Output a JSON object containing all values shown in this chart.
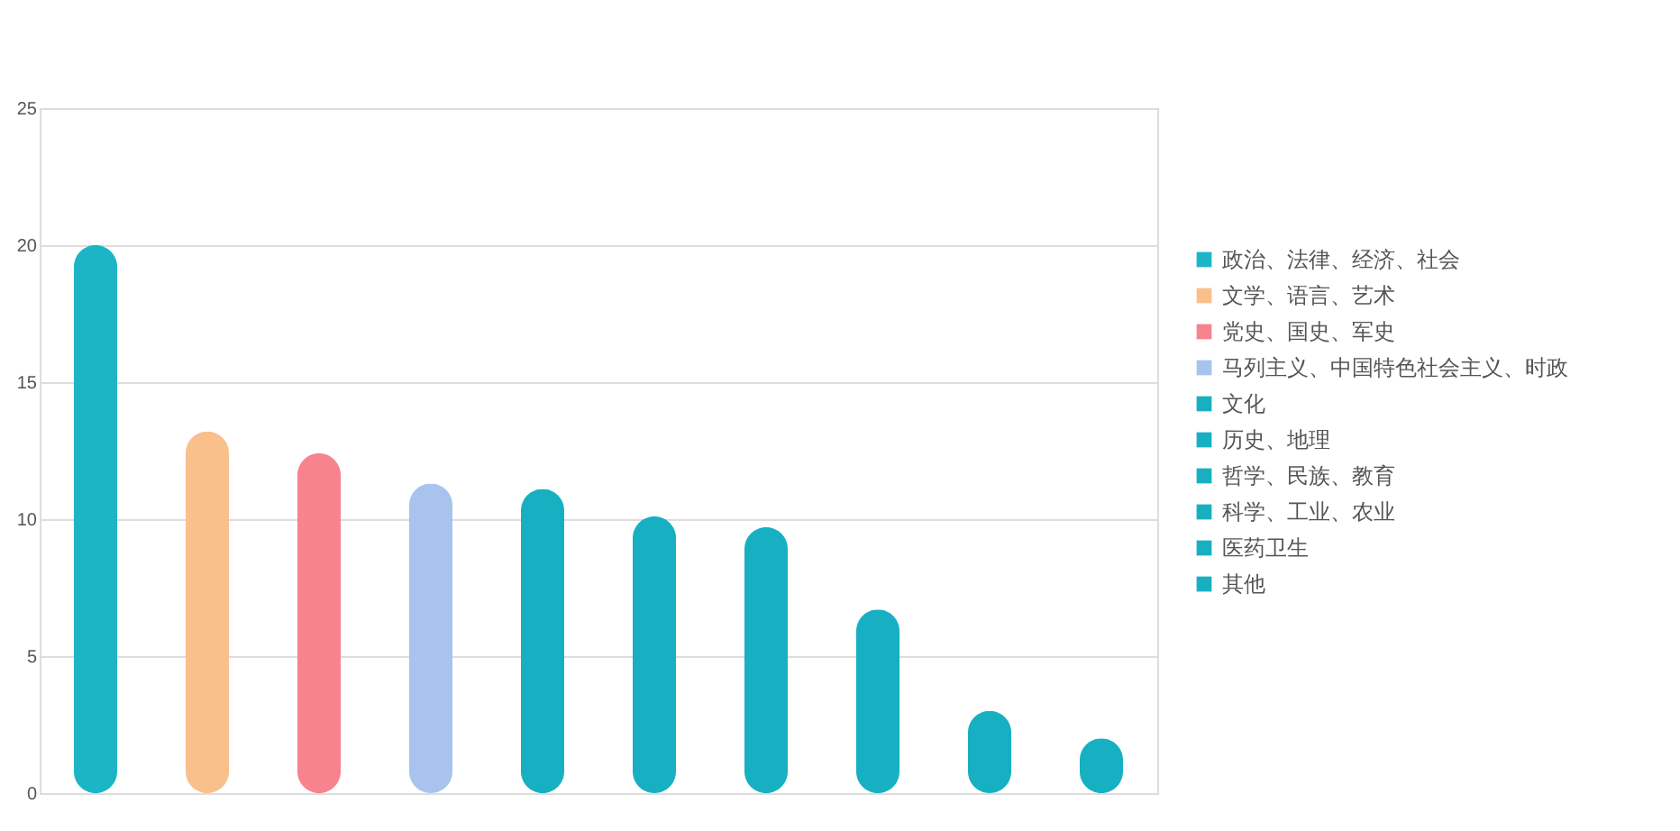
{
  "chart_data": {
    "type": "bar",
    "categories": [
      null,
      null,
      null,
      null,
      null,
      null,
      null,
      null,
      null,
      null
    ],
    "series": [
      {
        "name": "政治、法律、经济、社会",
        "color": "#1bb5c5",
        "values": [
          20.0,
          null,
          null,
          null,
          null,
          null,
          null,
          null,
          null,
          null
        ]
      },
      {
        "name": "文学、语言、艺术",
        "color": "#f9c08c",
        "values": [
          null,
          13.2,
          null,
          null,
          null,
          null,
          null,
          null,
          null,
          null
        ]
      },
      {
        "name": "党史、国史、军史",
        "color": "#f7838f",
        "values": [
          null,
          null,
          12.4,
          null,
          null,
          null,
          null,
          null,
          null,
          null
        ]
      },
      {
        "name": "马列主义、中国特色社会主义、时政",
        "color": "#a8c3ee",
        "values": [
          null,
          null,
          null,
          11.3,
          null,
          null,
          null,
          null,
          null,
          null
        ]
      },
      {
        "name": "文化",
        "color": "#17b0c2",
        "values": [
          null,
          null,
          null,
          null,
          11.1,
          null,
          null,
          null,
          null,
          null
        ]
      },
      {
        "name": "历史、地理",
        "color": "#17b0c2",
        "values": [
          null,
          null,
          null,
          null,
          null,
          10.1,
          null,
          null,
          null,
          null
        ]
      },
      {
        "name": "哲学、民族、教育",
        "color": "#17b0c2",
        "values": [
          null,
          null,
          null,
          null,
          null,
          null,
          9.7,
          null,
          null,
          null
        ]
      },
      {
        "name": "科学、工业、农业",
        "color": "#17b0c2",
        "values": [
          null,
          null,
          null,
          null,
          null,
          null,
          null,
          6.7,
          null,
          null
        ]
      },
      {
        "name": "医药卫生",
        "color": "#17b0c2",
        "values": [
          null,
          null,
          null,
          null,
          null,
          null,
          null,
          null,
          3.0,
          null
        ]
      },
      {
        "name": "其他",
        "color": "#17b0c2",
        "values": [
          null,
          null,
          null,
          null,
          null,
          null,
          null,
          null,
          null,
          2.0
        ]
      }
    ],
    "ylim": [
      0,
      25
    ],
    "yticks": [
      0,
      5,
      10,
      15,
      20,
      25
    ],
    "grid": "y",
    "legend": "right",
    "tick_labels": "y"
  }
}
